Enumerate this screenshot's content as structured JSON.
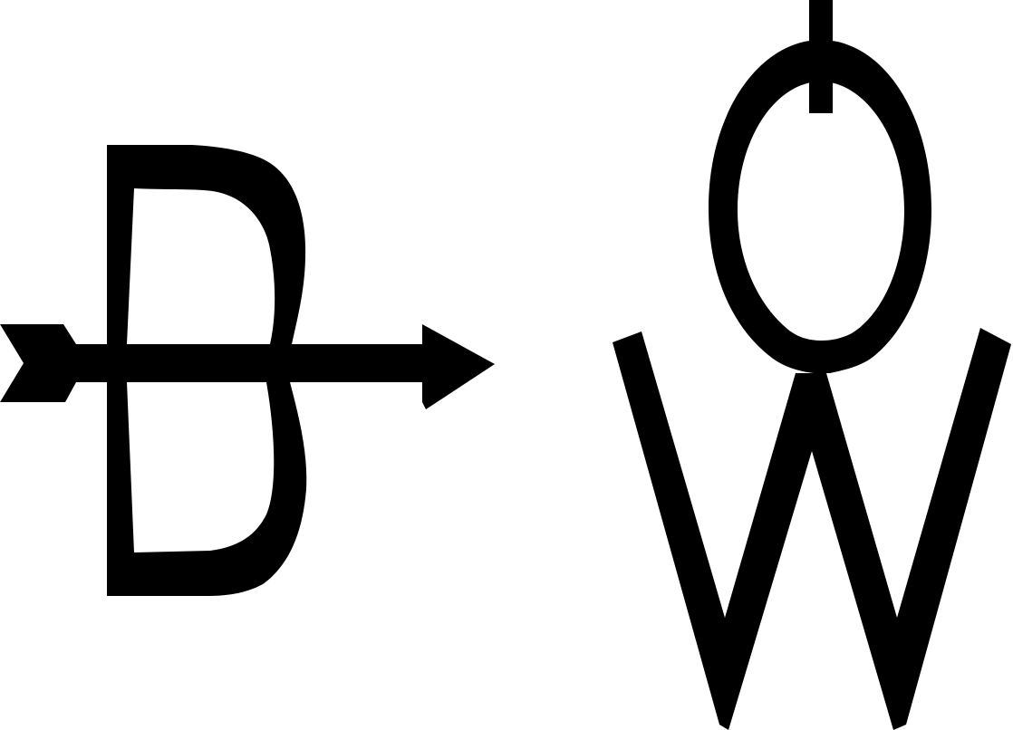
{
  "logo": {
    "marks": [
      {
        "name": "bow-and-arrow-mark",
        "icon": "bow-arrow-glyph",
        "letter": "B"
      },
      {
        "name": "ow-monogram-mark",
        "icon": "ow-monogram-glyph",
        "letter": "OW"
      }
    ]
  },
  "colors": {
    "background": "#ffffff",
    "ink": "#000000"
  }
}
